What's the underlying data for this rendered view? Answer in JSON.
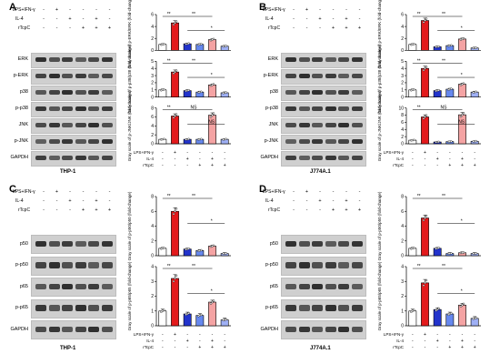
{
  "colors": {
    "ctrl": "#ffffff",
    "lps": "#e31a1c",
    "il4": "#2233cc",
    "rtcpc": "#6688ee",
    "combo1": "#f4a3a3",
    "combo2": "#9fb0f5"
  },
  "treatments": [
    "LPS+IFN-γ",
    "IL-4",
    "rTcpC"
  ],
  "signs": {
    "row1": [
      "-",
      "+",
      "-",
      "-",
      "-",
      "-"
    ],
    "row2": [
      "-",
      "-",
      "+",
      "-",
      "+",
      "-"
    ],
    "row3": [
      "-",
      "-",
      "-",
      "+",
      "+",
      "+"
    ]
  },
  "panels": [
    {
      "letter": "A",
      "cell": "THP-1",
      "blots": [
        "ERK",
        "p-ERK",
        "p38",
        "p-p38",
        "JNK",
        "p-JNK",
        "GAPDH"
      ],
      "charts": [
        {
          "ylabel": "Gray scale of p-ERK/ERK (fold-change)",
          "ylim": [
            0,
            6
          ],
          "ticks": [
            "0",
            "2",
            "4",
            "6"
          ],
          "values": [
            1,
            4.6,
            1.1,
            1.0,
            1.8,
            0.7
          ],
          "sig": [
            [
              "**",
              "**"
            ],
            [
              "*"
            ]
          ]
        },
        {
          "ylabel": "Gray scale of p-p38/p38 (fold-change)",
          "ylim": [
            0,
            5
          ],
          "ticks": [
            "0",
            "1",
            "2",
            "3",
            "4",
            "5"
          ],
          "values": [
            1,
            3.5,
            0.9,
            0.7,
            1.7,
            0.6
          ],
          "sig": [
            [
              "**",
              "**"
            ],
            [
              "*"
            ]
          ]
        },
        {
          "ylabel": "Gray scale of p-JNK/JNK (fold-change)",
          "ylim": [
            0,
            8
          ],
          "ticks": [
            "0",
            "2",
            "4",
            "6",
            "8"
          ],
          "values": [
            1,
            6.2,
            1.0,
            1.0,
            6.4,
            1.0
          ],
          "sig": [
            [
              "**",
              "NS"
            ],
            [
              "NS"
            ]
          ]
        }
      ]
    },
    {
      "letter": "B",
      "cell": "J774A.1",
      "blots": [
        "ERK",
        "p-ERK",
        "p38",
        "p-p38",
        "JNK",
        "p-JNK",
        "GAPDH"
      ],
      "charts": [
        {
          "ylabel": "Gray scale of p-ERK/ERK (fold-change)",
          "ylim": [
            0,
            6
          ],
          "ticks": [
            "0",
            "2",
            "4",
            "6"
          ],
          "values": [
            1,
            5.0,
            0.6,
            0.8,
            1.9,
            0.4
          ],
          "sig": [
            [
              "**",
              "**"
            ],
            [
              "*"
            ]
          ]
        },
        {
          "ylabel": "Gray scale of p-p38/p38 (fold-change)",
          "ylim": [
            0,
            5
          ],
          "ticks": [
            "0",
            "1",
            "2",
            "3",
            "4",
            "5"
          ],
          "values": [
            1,
            4.0,
            0.9,
            1.1,
            1.8,
            0.7
          ],
          "sig": [
            [
              "**",
              "**"
            ],
            [
              "*"
            ]
          ]
        },
        {
          "ylabel": "Gray scale of p-JNK/JNK (fold-change)",
          "ylim": [
            0,
            10
          ],
          "ticks": [
            "0",
            "2",
            "4",
            "6",
            "8",
            "10"
          ],
          "values": [
            1,
            7.5,
            0.5,
            0.6,
            8.1,
            0.7
          ],
          "sig": [
            [
              "**",
              "NS"
            ],
            [
              "NS"
            ]
          ]
        }
      ]
    },
    {
      "letter": "C",
      "cell": "THP-1",
      "blots": [
        "p50",
        "p-p50",
        "p65",
        "p-p65",
        "GAPDH"
      ],
      "charts": [
        {
          "ylabel": "Gray scale of p-p50/p50 (fold-change)",
          "ylim": [
            0,
            8
          ],
          "ticks": [
            "0",
            "2",
            "4",
            "6",
            "8"
          ],
          "values": [
            1,
            6.0,
            0.9,
            0.7,
            1.3,
            0.3
          ],
          "sig": [
            [
              "**",
              "**"
            ],
            [
              "*"
            ]
          ]
        },
        {
          "ylabel": "Gray scale of p-p65/p65 (fold-change)",
          "ylim": [
            0,
            4
          ],
          "ticks": [
            "0",
            "1",
            "2",
            "3",
            "4"
          ],
          "values": [
            1,
            3.2,
            0.8,
            0.7,
            1.6,
            0.4
          ],
          "sig": [
            [
              "**",
              "**"
            ],
            [
              "*"
            ]
          ]
        }
      ]
    },
    {
      "letter": "D",
      "cell": "J774A.1",
      "blots": [
        "p50",
        "p-p50",
        "p65",
        "p-p65",
        "GAPDH"
      ],
      "charts": [
        {
          "ylabel": "Gray scale of p-p50/p50 (fold-change)",
          "ylim": [
            0,
            8
          ],
          "ticks": [
            "0",
            "2",
            "4",
            "6",
            "8"
          ],
          "values": [
            1,
            5.1,
            1.0,
            0.3,
            0.4,
            0.3
          ],
          "sig": [
            [
              "**",
              "**"
            ],
            [
              "*"
            ]
          ]
        },
        {
          "ylabel": "Gray scale of p-p65/p65 (fold-change)",
          "ylim": [
            0,
            4
          ],
          "ticks": [
            "0",
            "1",
            "2",
            "3",
            "4"
          ],
          "values": [
            1,
            2.9,
            1.1,
            0.8,
            1.4,
            0.5
          ],
          "sig": [
            [
              "**",
              "**"
            ],
            [
              "*"
            ]
          ]
        }
      ]
    }
  ]
}
